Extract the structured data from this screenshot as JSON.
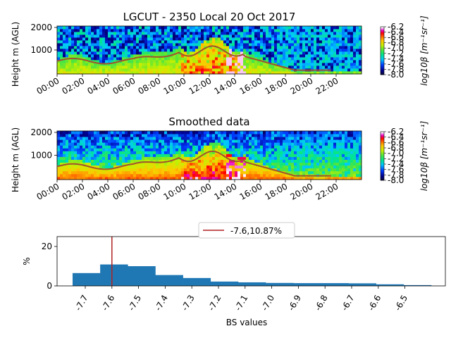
{
  "figure": {
    "panel1_title": "LGCUT - 2350 Local 20 Oct 2017",
    "panel2_title": "Smoothed data",
    "ylabel": "Height m (AGL)",
    "colorbar_label": "log10β [m⁻¹sr⁻¹]",
    "colorbar_ticks": [
      "-6.2",
      "-6.4",
      "-6.6",
      "-6.8",
      "-7.0",
      "-7.2",
      "-7.4",
      "-7.6",
      "-7.8",
      "-8.0"
    ],
    "height_ticks": [
      "2000",
      "1000"
    ],
    "time_ticks": [
      "00:00",
      "02:00",
      "04:00",
      "06:00",
      "08:00",
      "10:00",
      "12:00",
      "14:00",
      "16:00",
      "18:00",
      "20:00",
      "22:00"
    ],
    "colors": {
      "boundary_line": "#a0522d",
      "bar": "#1f77b4",
      "marker_line": "#b22222"
    }
  },
  "chart_data": [
    {
      "type": "heatmap",
      "title": "LGCUT - 2350 Local 20 Oct 2017",
      "ylabel": "Height m (AGL)",
      "colorbar_label": "log10β [m⁻¹sr⁻¹]",
      "color_range": [
        -8.0,
        -6.2
      ],
      "x_ticks": [
        "00:00",
        "02:00",
        "04:00",
        "06:00",
        "08:00",
        "10:00",
        "12:00",
        "14:00",
        "16:00",
        "18:00",
        "20:00",
        "22:00"
      ],
      "y_ticks": [
        1000,
        2000
      ],
      "ylim": [
        0,
        2000
      ]
    },
    {
      "type": "heatmap",
      "title": "Smoothed data",
      "ylabel": "Height m (AGL)",
      "colorbar_label": "log10β [m⁻¹sr⁻¹]",
      "color_range": [
        -8.0,
        -6.2
      ],
      "x_ticks": [
        "00:00",
        "02:00",
        "04:00",
        "06:00",
        "08:00",
        "10:00",
        "12:00",
        "14:00",
        "16:00",
        "18:00",
        "20:00",
        "22:00"
      ],
      "y_ticks": [
        1000,
        2000
      ],
      "ylim": [
        0,
        2000
      ]
    },
    {
      "type": "bar",
      "xlabel": "BS values",
      "ylabel": "%",
      "categories": [
        "-7.7",
        "-7.6",
        "-7.5",
        "-7.4",
        "-7.3",
        "-7.2",
        "-7.1",
        "-7.0",
        "-6.9",
        "-6.8",
        "-6.7",
        "-6.6",
        "-6.5"
      ],
      "tick_labels": [
        "-7.7",
        "-7.6",
        "-7.5",
        "-7.4",
        "-7.3",
        "-7.2",
        "-7.1",
        "-7.0",
        "-6.9",
        "-6.8",
        "-6.7",
        "-6.6",
        "-6.5"
      ],
      "values": [
        6.5,
        10.87,
        10.0,
        5.5,
        4.0,
        2.2,
        1.8,
        1.5,
        1.4,
        1.4,
        1.3,
        0.8,
        0.4
      ],
      "ylim": [
        0,
        25
      ],
      "y_ticks": [
        0,
        20
      ],
      "marker": {
        "x": -7.6,
        "label": "-7.6,10.87%"
      },
      "legend": "top-center"
    }
  ]
}
